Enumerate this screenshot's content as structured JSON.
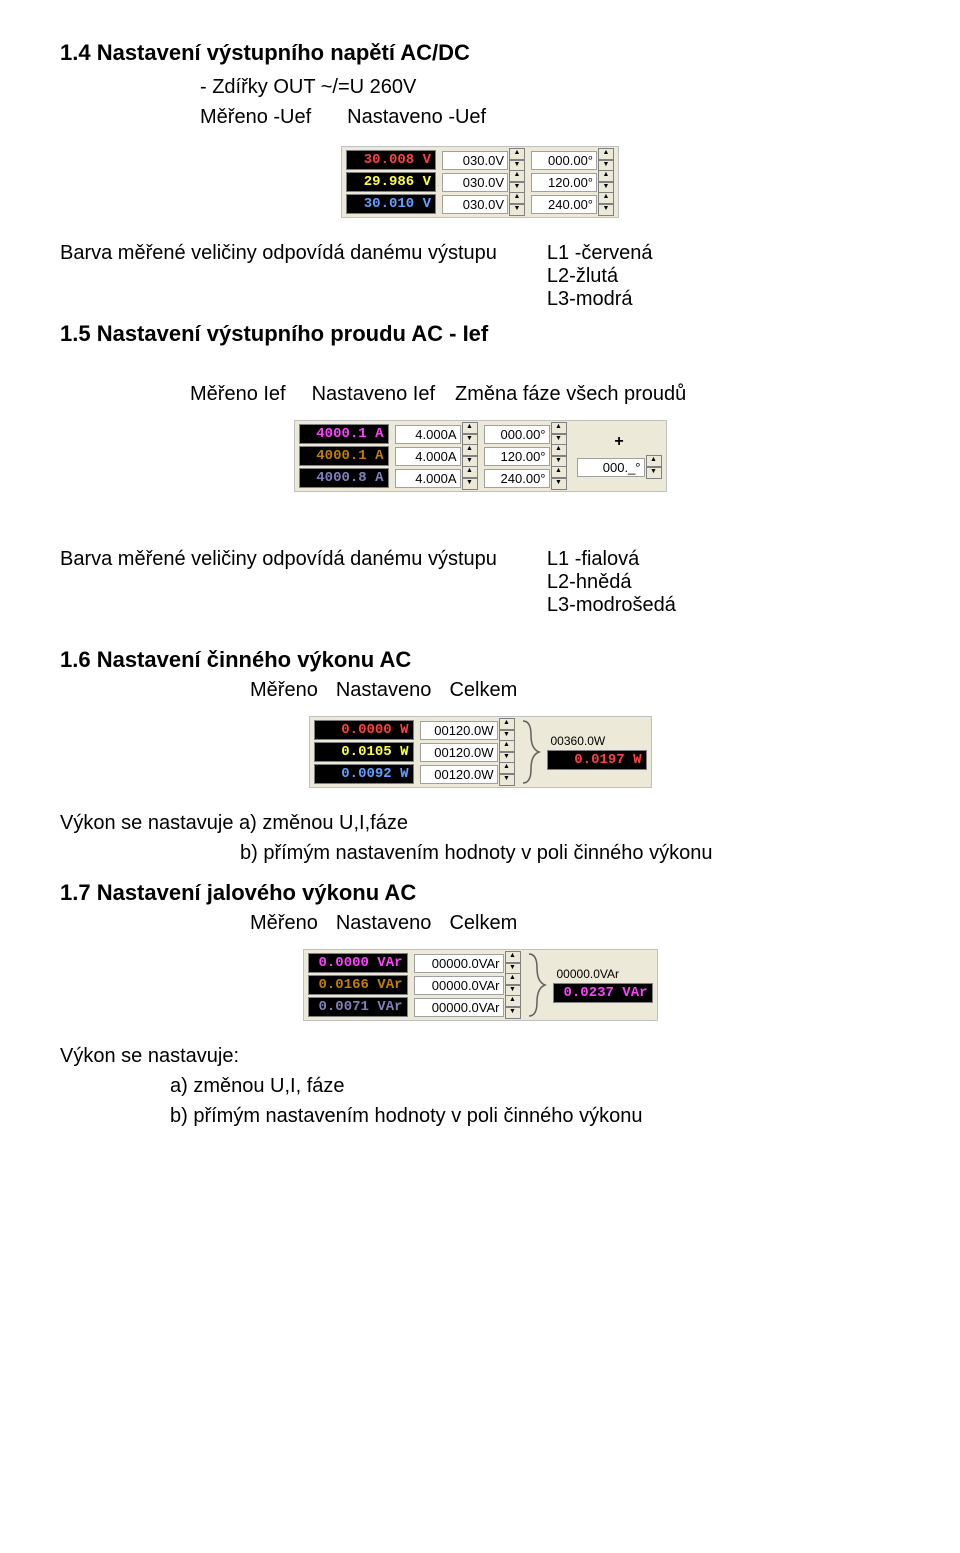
{
  "section14": {
    "heading": "1.4   Nastavení výstupního napětí AC/DC",
    "sub1": "-  Zdířky   OUT   ~/=U 260V",
    "sub2a": "Měřeno -Uef",
    "sub2b": "Nastaveno -Uef",
    "rows": [
      {
        "disp": "30.008 V",
        "disp_color": "#ff4040",
        "set": "030.0V",
        "phase": "000.00°"
      },
      {
        "disp": "29.986 V",
        "disp_color": "#ffff40",
        "set": "030.0V",
        "phase": "120.00°"
      },
      {
        "disp": "30.010 V",
        "disp_color": "#60a0ff",
        "set": "030.0V",
        "phase": "240.00°"
      }
    ],
    "desc": "Barva měřené veličiny odpovídá danému výstupu",
    "colors": [
      "L1 -červená",
      "L2-žlutá",
      "L3-modrá"
    ]
  },
  "section15": {
    "heading": "1.5   Nastavení výstupního proudu AC - Ief",
    "labels": {
      "a": "Měřeno Ief",
      "b": "Nastaveno Ief",
      "c": "Změna fáze všech proudů"
    },
    "rows": [
      {
        "disp": "4000.1 A",
        "disp_color": "#ff40ff",
        "set": "4.000A",
        "phase": "000.00°"
      },
      {
        "disp": "4000.1 A",
        "disp_color": "#c08000",
        "set": "4.000A",
        "phase": "120.00°"
      },
      {
        "disp": "4000.8 A",
        "disp_color": "#8080c0",
        "set": "4.000A",
        "phase": "240.00°"
      }
    ],
    "plus": "+",
    "phase_lock": "000._°",
    "desc": "Barva měřené veličiny odpovídá danému výstupu",
    "colors": [
      "L1 -fialová",
      "L2-hnědá",
      "L3-modrošedá"
    ]
  },
  "section16": {
    "heading": "1.6   Nastavení činného výkonu AC",
    "labels": {
      "a": "Měřeno",
      "b": "Nastaveno",
      "c": "Celkem"
    },
    "rows": [
      {
        "disp": "0.0000 W",
        "disp_color": "#ff4040",
        "set": "00120.0W"
      },
      {
        "disp": "0.0105 W",
        "disp_color": "#ffff40",
        "set": "00120.0W"
      },
      {
        "disp": "0.0092 W",
        "disp_color": "#60a0ff",
        "set": "00120.0W"
      }
    ],
    "sum_label": "00360.0W",
    "sum_disp": "0.0197 W",
    "sum_color": "#ff4040",
    "note1": "Výkon se nastavuje a) změnou U,I,fáze",
    "note2": "b) přímým nastavením hodnoty v poli činného výkonu"
  },
  "section17": {
    "heading": "1.7   Nastavení jalového výkonu AC",
    "labels": {
      "a": "Měřeno",
      "b": "Nastaveno",
      "c": "Celkem"
    },
    "rows": [
      {
        "disp": "0.0000 VAr",
        "disp_color": "#ff40ff",
        "set": "00000.0VAr"
      },
      {
        "disp": "0.0166 VAr",
        "disp_color": "#c08000",
        "set": "00000.0VAr"
      },
      {
        "disp": "0.0071 VAr",
        "disp_color": "#8080c0",
        "set": "00000.0VAr"
      }
    ],
    "sum_label": "00000.0VAr",
    "sum_disp": "0.0237 VAr",
    "sum_color": "#ff40ff",
    "note_head": "Výkon se nastavuje:",
    "note1": "a) změnou U,I, fáze",
    "note2": "b) přímým nastavením hodnoty v poli činného výkonu"
  }
}
